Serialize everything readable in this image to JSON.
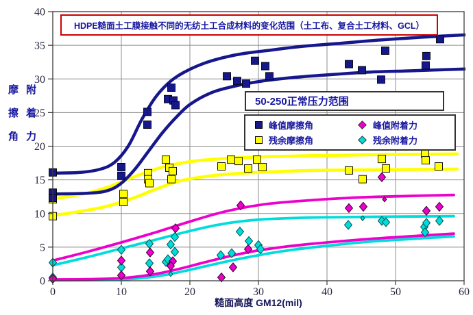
{
  "chart_data": {
    "type": "scatter",
    "title": "HDPE糙面土工膜接触不同的无纺土工合成材料的变化范围（土工布、复合土工材料、GCL）",
    "annotation": "50-250正常压力范围",
    "xlabel": "糙面高度 GM12(mil)",
    "ylabel_col1": "摩擦角",
    "ylabel_col2": "附着力",
    "xlim": [
      0,
      60
    ],
    "ylim": [
      0,
      40
    ],
    "xticks": [
      0,
      10,
      20,
      30,
      40,
      50,
      60
    ],
    "yticks": [
      0,
      5,
      10,
      15,
      20,
      25,
      30,
      35,
      40
    ],
    "grid": true,
    "legend_position": "inside-right",
    "point_format": "[x, y, small_marker_flag]",
    "series": [
      {
        "key": "peak-friction-angle",
        "name": "峰值摩擦角",
        "marker": "square",
        "color": "#17178c",
        "edge": "#000000",
        "points": [
          [
            0,
            16.1
          ],
          [
            0,
            13.1
          ],
          [
            0,
            12.3
          ],
          [
            10,
            16.9
          ],
          [
            10,
            15.6
          ],
          [
            13.8,
            25.1
          ],
          [
            13.8,
            23.2
          ],
          [
            16.8,
            27
          ],
          [
            17.3,
            28.7
          ],
          [
            17.6,
            26.8
          ],
          [
            17.9,
            26.1
          ],
          [
            25.4,
            30.4
          ],
          [
            26.9,
            29.7
          ],
          [
            28.2,
            29.3
          ],
          [
            29.5,
            32.7
          ],
          [
            31,
            31.9
          ],
          [
            31.6,
            30.4
          ],
          [
            43.2,
            32.2
          ],
          [
            45.1,
            31.3
          ],
          [
            47.9,
            29.9
          ],
          [
            48.5,
            34.2
          ],
          [
            54.4,
            32
          ],
          [
            54.5,
            33.4
          ],
          [
            56.5,
            35.9
          ]
        ]
      },
      {
        "key": "residual-friction-angle",
        "name": "残余摩擦角",
        "marker": "square",
        "color": "#ffff00",
        "edge": "#000000",
        "points": [
          [
            0,
            12.1
          ],
          [
            0,
            9.6
          ],
          [
            10.3,
            12.9
          ],
          [
            10.3,
            11.7
          ],
          [
            13.9,
            16
          ],
          [
            13.9,
            15.1
          ],
          [
            14.1,
            14.5
          ],
          [
            16.5,
            18
          ],
          [
            17,
            16.8
          ],
          [
            17.5,
            16.3
          ],
          [
            17.3,
            15.1
          ],
          [
            24.6,
            17
          ],
          [
            26,
            18
          ],
          [
            27.1,
            17.8
          ],
          [
            28.5,
            16.7
          ],
          [
            29.8,
            18
          ],
          [
            30.6,
            16.9
          ],
          [
            43.2,
            16.4
          ],
          [
            45.2,
            15.1
          ],
          [
            48,
            18.1
          ],
          [
            48.6,
            16.7
          ],
          [
            54.3,
            18.9
          ],
          [
            54.4,
            17.9
          ],
          [
            56.3,
            17
          ]
        ]
      },
      {
        "key": "peak-adhesion",
        "name": "峰值附着力",
        "marker": "diamond",
        "color": "#ee00cc",
        "edge": "#33002c",
        "points": [
          [
            0,
            0.3
          ],
          [
            10,
            3
          ],
          [
            10,
            0.8
          ],
          [
            14.2,
            4.2
          ],
          [
            14.2,
            1.4
          ],
          [
            17.9,
            7.8
          ],
          [
            17.5,
            2.9
          ],
          [
            17.2,
            2.2
          ],
          [
            24.6,
            0.5
          ],
          [
            26.3,
            2
          ],
          [
            27.4,
            11.2
          ],
          [
            28.5,
            4.7
          ],
          [
            43.2,
            10.8
          ],
          [
            45.3,
            11
          ],
          [
            48,
            15.4
          ],
          [
            48.4,
            12.1,
            1
          ],
          [
            54.5,
            10.4
          ],
          [
            56.4,
            11
          ]
        ]
      },
      {
        "key": "residual-adhesion",
        "name": "残余附着力",
        "marker": "diamond",
        "color": "#00dcdc",
        "edge": "#00504e",
        "points": [
          [
            0,
            2.7
          ],
          [
            0,
            0.5
          ],
          [
            10,
            4.6
          ],
          [
            10,
            2
          ],
          [
            14.1,
            5.5
          ],
          [
            14.1,
            2.6
          ],
          [
            16.5,
            2.8
          ],
          [
            16.8,
            3.2
          ],
          [
            17.2,
            5.4
          ],
          [
            17.8,
            4.3
          ],
          [
            17.8,
            6.5
          ],
          [
            17.2,
            1,
            1
          ],
          [
            24.5,
            3.8
          ],
          [
            26.1,
            4.1
          ],
          [
            27.3,
            7.3
          ],
          [
            28.6,
            5.9
          ],
          [
            30,
            5.3
          ],
          [
            30.3,
            4.7
          ],
          [
            43.1,
            8.3
          ],
          [
            45.2,
            9.3,
            1
          ],
          [
            48,
            8.9
          ],
          [
            48.6,
            8.7
          ],
          [
            54.2,
            8
          ],
          [
            54.3,
            7.2
          ],
          [
            54.5,
            8.6
          ],
          [
            56.4,
            8.9
          ]
        ]
      }
    ],
    "envelope_curves": [
      {
        "series": "peak-friction-angle",
        "bound": "upper",
        "color": "#17178c",
        "points": [
          [
            0,
            16
          ],
          [
            4,
            16.1
          ],
          [
            7,
            16.6
          ],
          [
            9,
            17.6
          ],
          [
            11,
            20
          ],
          [
            13,
            24
          ],
          [
            15,
            27.3
          ],
          [
            17,
            29.5
          ],
          [
            19,
            30.9
          ],
          [
            22,
            32.3
          ],
          [
            25,
            33.2
          ],
          [
            28,
            33.8
          ],
          [
            32,
            34.3
          ],
          [
            36,
            34.8
          ],
          [
            42,
            35.3
          ],
          [
            48,
            35.8
          ],
          [
            54,
            36.2
          ],
          [
            61,
            36.6
          ]
        ]
      },
      {
        "series": "peak-friction-angle",
        "bound": "lower",
        "color": "#17178c",
        "points": [
          [
            0,
            12.9
          ],
          [
            5,
            13
          ],
          [
            8,
            13.4
          ],
          [
            10,
            14.5
          ],
          [
            12,
            16.6
          ],
          [
            14,
            19.3
          ],
          [
            16,
            22
          ],
          [
            18,
            24.3
          ],
          [
            20,
            26.2
          ],
          [
            23,
            27.9
          ],
          [
            26,
            28.8
          ],
          [
            30,
            29.6
          ],
          [
            35,
            30.2
          ],
          [
            40,
            30.6
          ],
          [
            46,
            31
          ],
          [
            52,
            31.2
          ],
          [
            61,
            31.5
          ]
        ]
      },
      {
        "series": "residual-friction-angle",
        "bound": "upper",
        "color": "#ffff00",
        "points": [
          [
            0,
            12.2
          ],
          [
            4,
            12.8
          ],
          [
            8,
            13.9
          ],
          [
            12,
            15.5
          ],
          [
            16,
            16.9
          ],
          [
            20,
            17.7
          ],
          [
            24,
            18.1
          ],
          [
            30,
            18.4
          ],
          [
            38,
            18.6
          ],
          [
            48,
            18.75
          ],
          [
            59,
            18.85
          ]
        ]
      },
      {
        "series": "residual-friction-angle",
        "bound": "lower",
        "color": "#ffff00",
        "points": [
          [
            0,
            9.7
          ],
          [
            4,
            10.3
          ],
          [
            8,
            11.1
          ],
          [
            12,
            12.4
          ],
          [
            15,
            13.6
          ],
          [
            18,
            14.7
          ],
          [
            21,
            15.3
          ],
          [
            25,
            15.8
          ],
          [
            30,
            16.1
          ],
          [
            38,
            16.4
          ],
          [
            48,
            16.5
          ],
          [
            59,
            16.6
          ]
        ]
      },
      {
        "series": "peak-adhesion",
        "bound": "upper",
        "color": "#ee00cc",
        "points": [
          [
            0,
            3
          ],
          [
            5,
            4.3
          ],
          [
            10,
            5.7
          ],
          [
            15,
            7.2
          ],
          [
            20,
            8.8
          ],
          [
            24,
            10
          ],
          [
            28,
            10.9
          ],
          [
            32,
            11.5
          ],
          [
            38,
            12
          ],
          [
            45,
            12.4
          ],
          [
            52,
            12.6
          ],
          [
            58.5,
            12.75
          ]
        ]
      },
      {
        "series": "peak-adhesion",
        "bound": "lower",
        "color": "#ee00cc",
        "points": [
          [
            0,
            0.2
          ],
          [
            6,
            0.25
          ],
          [
            10,
            0.4
          ],
          [
            13,
            0.7
          ],
          [
            16,
            1.2
          ],
          [
            19,
            1.9
          ],
          [
            22,
            2.7
          ],
          [
            26,
            3.7
          ],
          [
            30,
            4.5
          ],
          [
            35,
            5.2
          ],
          [
            40,
            5.7
          ],
          [
            46,
            6.2
          ],
          [
            52,
            6.6
          ],
          [
            58.5,
            7
          ]
        ]
      },
      {
        "series": "residual-adhesion",
        "bound": "upper",
        "color": "#00dcdc",
        "points": [
          [
            0,
            2.3
          ],
          [
            5,
            3.5
          ],
          [
            10,
            4.8
          ],
          [
            15,
            6.1
          ],
          [
            20,
            7.4
          ],
          [
            24,
            8.3
          ],
          [
            28,
            8.9
          ],
          [
            32,
            9.2
          ],
          [
            38,
            9.4
          ],
          [
            46,
            9.5
          ],
          [
            58.5,
            9.6
          ]
        ]
      },
      {
        "series": "residual-adhesion",
        "bound": "lower",
        "color": "#00dcdc",
        "points": [
          [
            0,
            0.07
          ],
          [
            6,
            0.1
          ],
          [
            10,
            0.2
          ],
          [
            13,
            0.4
          ],
          [
            16,
            0.8
          ],
          [
            19,
            1.4
          ],
          [
            22,
            2.1
          ],
          [
            26,
            3
          ],
          [
            30,
            3.8
          ],
          [
            35,
            4.6
          ],
          [
            40,
            5.2
          ],
          [
            46,
            5.8
          ],
          [
            52,
            6.2
          ],
          [
            58.5,
            6.6
          ]
        ]
      }
    ],
    "colors": {
      "grid": "#8c8c8c",
      "axis": "#3a3a3a",
      "tick_label": "#26263c",
      "title_border": "#cc0000",
      "heading_text": "#1717a0",
      "background": "#ffffff"
    }
  }
}
